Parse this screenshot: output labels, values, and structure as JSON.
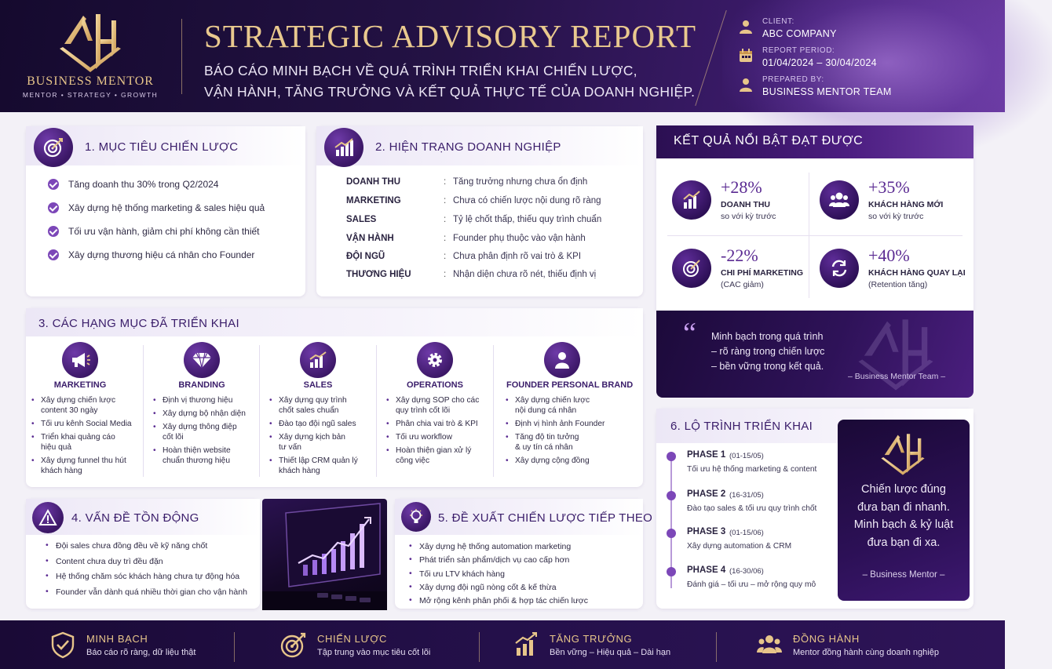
{
  "header": {
    "brand_name": "BUSINESS MENTOR",
    "brand_tagline": "MENTOR • STRATEGY • GROWTH",
    "title": "STRATEGIC ADVISORY REPORT",
    "subtitle_line1": "BÁO CÁO MINH BẠCH VỀ QUÁ TRÌNH TRIỂN KHAI CHIẾN LƯỢC,",
    "subtitle_line2": "VẬN HÀNH, TĂNG TRƯỞNG VÀ KẾT QUẢ THỰC TẾ CỦA DOANH NGHIỆP.",
    "client_label": "CLIENT:",
    "client_value": "ABC COMPANY",
    "period_label": "REPORT PERIOD:",
    "period_value": "01/04/2024 – 30/04/2024",
    "prepared_label": "PREPARED BY:",
    "prepared_value": "BUSINESS MENTOR TEAM",
    "colors": {
      "gold": "#e7c58a",
      "purple_dark": "#241245",
      "purple": "#5a2a92"
    }
  },
  "objectives": {
    "title": "1. MỤC TIÊU CHIẾN LƯỢC",
    "icon": "target-icon",
    "items": [
      "Tăng doanh thu 30% trong Q2/2024",
      "Xây dựng hệ thống marketing & sales hiệu quả",
      "Tối ưu vận hành, giảm chi phí không cần thiết",
      "Xây dựng thương hiệu cá nhân cho Founder"
    ]
  },
  "status": {
    "title": "2. HIỆN TRẠNG DOANH NGHIỆP",
    "icon": "bar-chart-icon",
    "rows": [
      {
        "key": "DOANH THU",
        "value": "Tăng trưởng nhưng chưa ổn định"
      },
      {
        "key": "MARKETING",
        "value": "Chưa có chiến lược nội dung rõ ràng"
      },
      {
        "key": "SALES",
        "value": "Tỷ lệ chốt thấp, thiếu quy trình chuẩn"
      },
      {
        "key": "VẬN HÀNH",
        "value": "Founder phụ thuộc vào vận hành"
      },
      {
        "key": "ĐỘI NGŨ",
        "value": "Chưa phân định rõ vai trò & KPI"
      },
      {
        "key": "THƯƠNG HIỆU",
        "value": "Nhận diện chưa rõ nét, thiếu định vị"
      }
    ]
  },
  "results": {
    "title": "KẾT QUẢ NỔI BẬT ĐẠT ĐƯỢC",
    "items": [
      {
        "value": "+28%",
        "label": "DOANH THU",
        "note": "so với kỳ trước",
        "icon": "growth-chart-icon"
      },
      {
        "value": "+35%",
        "label": "KHÁCH HÀNG MỚI",
        "note": "so với kỳ trước",
        "icon": "users-icon"
      },
      {
        "value": "-22%",
        "label": "CHI PHÍ MARKETING",
        "note": "(CAC giảm)",
        "icon": "target-icon"
      },
      {
        "value": "+40%",
        "label": "KHÁCH HÀNG QUAY LẠI",
        "note": "(Retention tăng)",
        "icon": "refresh-icon"
      }
    ],
    "quote_line1": "Minh bạch trong quá trình",
    "quote_line2": "– rõ ràng trong chiến lược",
    "quote_line3": "– bền vững trong kết quả.",
    "quote_author": "– Business Mentor Team –"
  },
  "implemented": {
    "title": "3. CÁC HẠNG MỤC ĐÃ TRIỂN KHAI",
    "columns": [
      {
        "name": "MARKETING",
        "icon": "megaphone-icon",
        "items": [
          "Xây dựng chiến lược|content 30 ngày",
          "Tối ưu kênh Social Media",
          "Triển khai quảng cáo|hiệu quả",
          "Xây dựng funnel thu hút|khách hàng"
        ]
      },
      {
        "name": "BRANDING",
        "icon": "diamond-icon",
        "items": [
          "Định vị thương hiệu",
          "Xây dựng bộ nhận diện",
          "Xây dựng thông điệp|cốt lõi",
          "Hoàn thiện website|chuẩn thương hiệu"
        ]
      },
      {
        "name": "SALES",
        "icon": "bar-chart-icon",
        "items": [
          "Xây dựng quy trình|chốt sales chuẩn",
          "Đào tạo đội ngũ sales",
          "Xây dựng kịch bản|tư vấn",
          "Thiết lập CRM quản lý|khách hàng"
        ]
      },
      {
        "name": "OPERATIONS",
        "icon": "gear-icon",
        "items": [
          "Xây dựng SOP cho các|quy trình cốt lõi",
          "Phân chia vai trò & KPI",
          "Tối ưu workflow",
          "Hoàn thiện gian xử lý|công việc"
        ]
      },
      {
        "name": "FOUNDER PERSONAL BRAND",
        "icon": "person-icon",
        "items": [
          "Xây dựng chiến lược|nội dung cá nhân",
          "Định vị hình ảnh Founder",
          "Tăng độ tin tưởng|& uy tín cá nhân",
          "Xây dựng cộng đồng"
        ]
      }
    ]
  },
  "issues": {
    "title": "4. VẤN ĐỀ TỒN ĐỘNG",
    "icon": "warning-icon",
    "items": [
      "Đội sales chưa đồng đều về kỹ năng chốt",
      "Content chưa duy trì đều đặn",
      "Hệ thống chăm sóc khách hàng chưa tự động hóa",
      "Founder vẫn dành quá nhiều thời gian cho vận hành"
    ]
  },
  "proposals": {
    "title": "5. ĐỀ XUẤT CHIẾN LƯỢC TIẾP THEO",
    "icon": "lightbulb-icon",
    "items": [
      "Xây dựng hệ thống automation marketing",
      "Phát triển sản phẩm/dịch vụ cao cấp hơn",
      "Tối ưu LTV khách hàng",
      "Xây dựng đội ngũ nòng cốt & kế thừa",
      "Mở rộng kênh phân phối & hợp tác chiến lược"
    ]
  },
  "roadmap": {
    "title": "6. LỘ TRÌNH TRIỂN KHAI",
    "phases": [
      {
        "name": "PHASE 1",
        "dates": "(01-15/05)",
        "text": "Tối ưu hệ thống marketing & content"
      },
      {
        "name": "PHASE 2",
        "dates": "(16-31/05)",
        "text": "Đào tạo sales & tối ưu quy trình chốt"
      },
      {
        "name": "PHASE 3",
        "dates": "(01-15/06)",
        "text": "Xây dựng automation & CRM"
      },
      {
        "name": "PHASE 4",
        "dates": "(16-30/06)",
        "text": "Đánh giá – tối ưu – mở rộng quy mô"
      }
    ],
    "mentor_quote": [
      "Chiến lược đúng",
      "đưa bạn đi nhanh.",
      "Minh bạch & kỷ luật",
      "đưa bạn đi xa."
    ],
    "mentor_author": "– Business Mentor –"
  },
  "footer": {
    "items": [
      {
        "title": "MINH BẠCH",
        "sub": "Báo cáo rõ ràng, dữ liệu thật",
        "icon": "shield-check-icon"
      },
      {
        "title": "CHIẾN LƯỢC",
        "sub": "Tập trung vào mục tiêu cốt lõi",
        "icon": "target-icon"
      },
      {
        "title": "TĂNG TRƯỞNG",
        "sub": "Bền vững – Hiệu quả – Dài hạn",
        "icon": "growth-chart-icon"
      },
      {
        "title": "ĐỒNG HÀNH",
        "sub": "Mentor đồng hành cùng doanh nghiệp",
        "icon": "team-icon"
      }
    ]
  }
}
